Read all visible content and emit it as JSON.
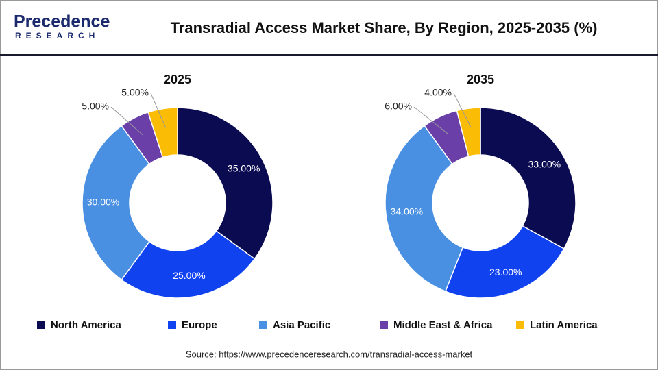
{
  "header": {
    "logo_top": "Precedence",
    "logo_bottom": "RESEARCH",
    "title": "Transradial Access Market Share, By Region, 2025-2035 (%)"
  },
  "chart_data": [
    {
      "type": "donut",
      "title": "2025",
      "categories": [
        "North America",
        "Europe",
        "Asia Pacific",
        "Middle East & Africa",
        "Latin America"
      ],
      "values": [
        35,
        25,
        30,
        5,
        5
      ],
      "value_labels": [
        "35.00%",
        "25.00%",
        "30.00%",
        "5.00%",
        "5.00%"
      ],
      "colors": [
        "#0b0b52",
        "#1142f0",
        "#4a90e2",
        "#6a3fa8",
        "#fbbc05"
      ]
    },
    {
      "type": "donut",
      "title": "2035",
      "categories": [
        "North America",
        "Europe",
        "Asia Pacific",
        "Middle East & Africa",
        "Latin America"
      ],
      "values": [
        33,
        23,
        34,
        6,
        4
      ],
      "value_labels": [
        "33.00%",
        "23.00%",
        "34.00%",
        "6.00%",
        "4.00%"
      ],
      "colors": [
        "#0b0b52",
        "#1142f0",
        "#4a90e2",
        "#6a3fa8",
        "#fbbc05"
      ]
    }
  ],
  "source": "Source: https://www.precedenceresearch.com/transradial-access-market"
}
